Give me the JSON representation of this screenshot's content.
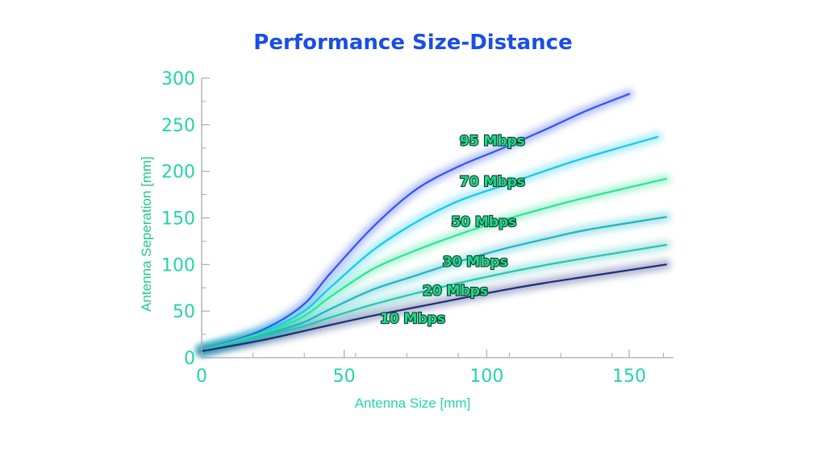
{
  "chart_data": {
    "type": "line",
    "title": "Performance Size-Distance",
    "xlabel": "Antenna Size [mm]",
    "ylabel": "Antenna Seperation [mm]",
    "xlim": [
      0,
      165
    ],
    "ylim": [
      0,
      300
    ],
    "xticks": [
      "0",
      "50",
      "100",
      "150"
    ],
    "yticks": [
      "0",
      "50",
      "100",
      "150",
      "200",
      "250",
      "300"
    ],
    "grid": false,
    "colors": {
      "title": "#1a4fe0",
      "tick_labels": "#22d3aa",
      "axis_labels": "#22c98a",
      "axis_line": "#aaaaaa"
    },
    "series": [
      {
        "name": "95 Mbps",
        "color": "#3355ee",
        "x": [
          0,
          20,
          35,
          45,
          60,
          75,
          90,
          105,
          120,
          135,
          150
        ],
        "y": [
          8,
          28,
          55,
          90,
          140,
          180,
          205,
          224,
          244,
          265,
          283
        ]
      },
      {
        "name": "70 Mbps",
        "color": "#19c8ea",
        "x": [
          0,
          20,
          35,
          45,
          60,
          75,
          90,
          105,
          120,
          135,
          160
        ],
        "y": [
          8,
          26,
          48,
          75,
          115,
          145,
          168,
          184,
          200,
          215,
          237
        ]
      },
      {
        "name": "50 Mbps",
        "color": "#2fe29a",
        "x": [
          0,
          20,
          35,
          45,
          60,
          75,
          90,
          105,
          120,
          135,
          163
        ],
        "y": [
          8,
          25,
          43,
          65,
          95,
          115,
          132,
          147,
          160,
          172,
          192
        ]
      },
      {
        "name": "30 Mbps",
        "color": "#1fb5c2",
        "x": [
          0,
          20,
          35,
          45,
          60,
          75,
          90,
          105,
          120,
          135,
          163
        ],
        "y": [
          8,
          23,
          37,
          52,
          73,
          88,
          103,
          116,
          127,
          137,
          151
        ]
      },
      {
        "name": "20 Mbps",
        "color": "#28c4b4",
        "x": [
          0,
          20,
          35,
          45,
          60,
          75,
          90,
          105,
          120,
          135,
          163
        ],
        "y": [
          8,
          22,
          33,
          43,
          57,
          69,
          80,
          90,
          99,
          107,
          121
        ]
      },
      {
        "name": "10 Mbps",
        "color": "#1d2d78",
        "x": [
          0,
          20,
          35,
          45,
          60,
          75,
          90,
          105,
          120,
          135,
          163
        ],
        "y": [
          7,
          18,
          28,
          35,
          45,
          54,
          63,
          72,
          80,
          87,
          100
        ]
      }
    ],
    "annotations": [
      {
        "text": "95 Mbps",
        "series": "95 Mbps",
        "x": 102,
        "y": 228
      },
      {
        "text": "70 Mbps",
        "series": "70 Mbps",
        "x": 102,
        "y": 184
      },
      {
        "text": "50 Mbps",
        "series": "50 Mbps",
        "x": 99,
        "y": 141
      },
      {
        "text": "30 Mbps",
        "series": "30 Mbps",
        "x": 96,
        "y": 98
      },
      {
        "text": "20 Mbps",
        "series": "20 Mbps",
        "x": 89,
        "y": 67
      },
      {
        "text": "10 Mbps",
        "series": "10 Mbps",
        "x": 74,
        "y": 37
      }
    ]
  }
}
